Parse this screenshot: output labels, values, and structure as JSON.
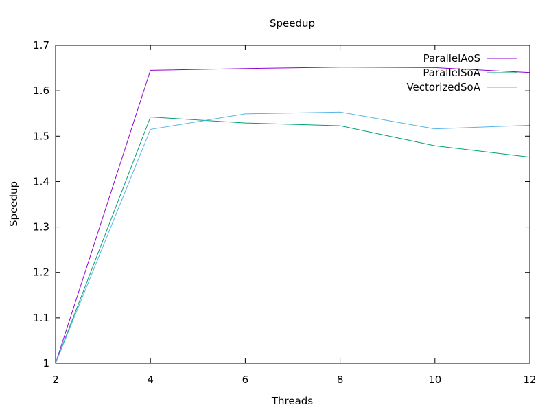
{
  "chart_data": {
    "type": "line",
    "title": "Speedup",
    "xlabel": "Threads",
    "ylabel": "Speedup",
    "x": [
      2,
      4,
      6,
      8,
      10,
      12
    ],
    "xlim": [
      2,
      12
    ],
    "ylim": [
      1,
      1.7
    ],
    "xticks": [
      "2",
      "4",
      "6",
      "8",
      "10",
      "12"
    ],
    "yticks": [
      "1",
      "1.1",
      "1.2",
      "1.3",
      "1.4",
      "1.5",
      "1.6",
      "1.7"
    ],
    "grid": false,
    "legend_position": "top-right",
    "series": [
      {
        "name": "ParallelAoS",
        "color": "#9400d3",
        "values": [
          1.0,
          1.645,
          1.649,
          1.652,
          1.651,
          1.64
        ]
      },
      {
        "name": "ParallelSoA",
        "color": "#009e73",
        "values": [
          1.0,
          1.542,
          1.529,
          1.523,
          1.479,
          1.454
        ]
      },
      {
        "name": "VectorizedSoA",
        "color": "#56b4e9",
        "values": [
          1.0,
          1.515,
          1.549,
          1.553,
          1.516,
          1.524
        ]
      }
    ]
  }
}
